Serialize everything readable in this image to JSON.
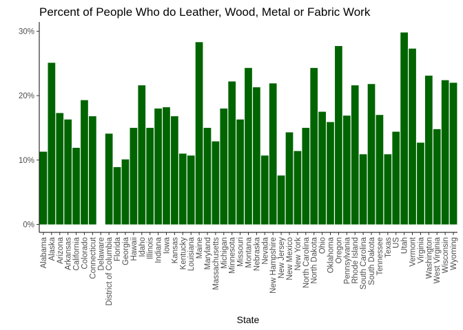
{
  "chart_data": {
    "type": "bar",
    "title": "Percent of People Who do Leather, Wood, Metal or Fabric Work",
    "xlabel": "State",
    "ylabel": "",
    "ylim": [
      0,
      31
    ],
    "yticks": [
      0,
      10,
      20,
      30
    ],
    "ytick_labels": [
      "0%",
      "10%",
      "20%",
      "30%"
    ],
    "grid": false,
    "legend": "none",
    "bar_color": "#006400",
    "categories": [
      "Alabama",
      "Alaska",
      "Arizona",
      "Arkansas",
      "California",
      "Colorado",
      "Connecticut",
      "Delaware",
      "District of Columbia",
      "Florida",
      "Georgia",
      "Hawaii",
      "Idaho",
      "Illinois",
      "Indiana",
      "Iowa",
      "Kansas",
      "Kentucky",
      "Louisiana",
      "Maine",
      "Maryland",
      "Massachusetts",
      "Michigan",
      "Minnesota",
      "Missouri",
      "Montana",
      "Nebraska",
      "Nevada",
      "New Hampshire",
      "New Jersey",
      "New Mexico",
      "New York",
      "North Carolina",
      "North Dakota",
      "Ohio",
      "Oklahoma",
      "Oregon",
      "Pennsylvania",
      "Rhode Island",
      "South Carolina",
      "South Dakota",
      "Tennessee",
      "Texas",
      "US",
      "Utah",
      "Vermont",
      "Virginia",
      "Washington",
      "West Virginia",
      "Wisconsin",
      "Wyoming"
    ],
    "values": [
      11.3,
      25.1,
      17.3,
      16.3,
      11.9,
      19.3,
      16.8,
      0,
      14.1,
      8.9,
      10.1,
      15.0,
      21.6,
      15.0,
      18.0,
      18.2,
      16.8,
      11.0,
      10.7,
      28.3,
      15.0,
      12.9,
      18.0,
      22.2,
      16.3,
      24.3,
      21.3,
      10.7,
      21.9,
      7.6,
      14.3,
      11.4,
      15.0,
      24.3,
      17.5,
      15.9,
      27.7,
      16.9,
      21.6,
      10.9,
      21.8,
      17.0,
      10.9,
      14.4,
      29.8,
      27.3,
      12.7,
      23.1,
      14.8,
      22.4,
      22.0
    ]
  }
}
